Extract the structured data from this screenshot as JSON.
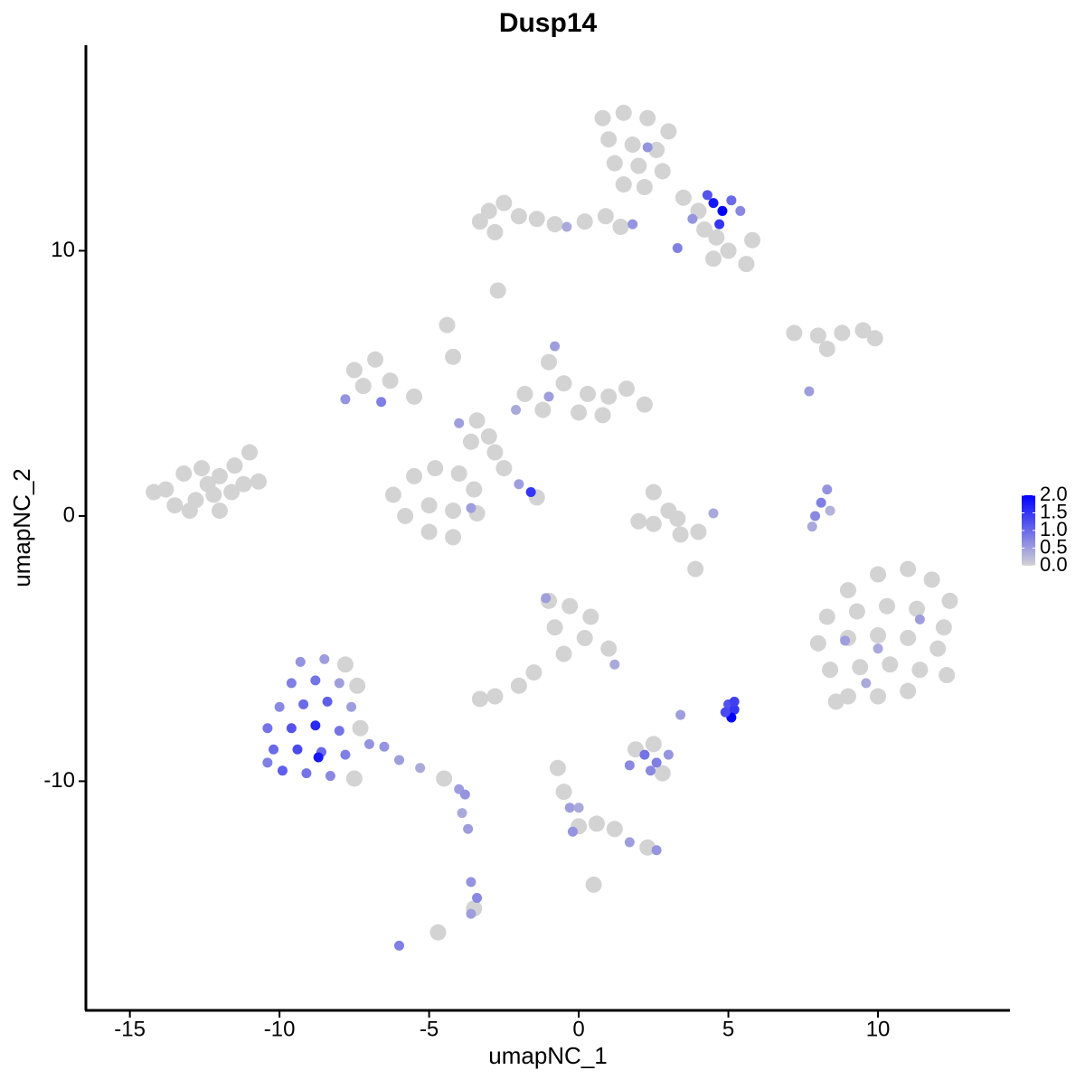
{
  "chart_data": {
    "type": "scatter",
    "title": "Dusp14",
    "x_label": "umapNC_1",
    "y_label": "umapNC_2",
    "xlim": [
      -16.47,
      14.41
    ],
    "ylim": [
      -18.64,
      17.75
    ],
    "xticks": [
      -15,
      -10,
      -5,
      0,
      5,
      10
    ],
    "yticks": [
      -10,
      0,
      10
    ],
    "color_low": "#d3d3d3",
    "color_high": "#0000ff",
    "color_lim": [
      0,
      2
    ],
    "color_ticks": [
      {
        "value": 0,
        "label": "0.0"
      },
      {
        "value": 0.5,
        "label": "0.5"
      },
      {
        "value": 1,
        "label": "1.0"
      },
      {
        "value": 1.5,
        "label": "1.5"
      },
      {
        "value": 2,
        "label": "2.0"
      }
    ],
    "x": [
      -13.8,
      -13.2,
      -12.6,
      -12.0,
      -11.5,
      -11.0,
      -13.5,
      -12.8,
      -12.2,
      -11.6,
      -11.2,
      -10.7,
      -13.0,
      -12.0,
      -14.2,
      -12.4,
      0.8,
      1.5,
      2.3,
      3.0,
      1.0,
      1.8,
      2.6,
      1.2,
      2.0,
      2.8,
      1.5,
      2.2,
      2.3,
      3.5,
      4.0,
      4.5,
      4.8,
      4.3,
      5.1,
      5.4,
      4.7,
      3.8,
      4.6,
      5.0,
      5.6,
      4.5,
      3.3,
      5.8,
      4.2,
      -3.0,
      -2.5,
      -2.0,
      -1.4,
      -0.8,
      0.2,
      0.9,
      1.4,
      -3.3,
      -2.8,
      1.8,
      -0.4,
      -2.7,
      -7.5,
      -6.8,
      -7.2,
      -6.3,
      -5.5,
      -7.8,
      -6.6,
      -4.4,
      -4.2,
      -1.8,
      -1.0,
      -0.5,
      0.3,
      1.0,
      1.6,
      2.2,
      -1.2,
      0.0,
      0.8,
      -0.8,
      -1.0,
      -2.1,
      -3.4,
      -3.0,
      -2.8,
      -3.6,
      -4.0,
      -2.5,
      -2.0,
      -1.6,
      -1.4,
      -6.2,
      -5.5,
      -4.8,
      -4.0,
      -3.5,
      -5.8,
      -5.0,
      -4.2,
      -3.4,
      -5.0,
      -4.2,
      -3.6,
      2.5,
      3.0,
      2.5,
      3.4,
      4.0,
      2.0,
      3.3,
      4.5,
      7.2,
      8.0,
      8.8,
      9.5,
      9.9,
      8.3,
      7.7,
      8.3,
      8.1,
      7.9,
      7.8,
      8.4,
      9.0,
      10.0,
      11.0,
      11.8,
      12.4,
      8.3,
      9.3,
      10.3,
      11.3,
      12.2,
      8.0,
      9.0,
      10.0,
      11.0,
      12.0,
      8.4,
      9.4,
      10.4,
      11.4,
      12.3,
      9.0,
      10.0,
      11.0,
      8.6,
      8.9,
      10.0,
      11.4,
      9.6,
      -1.0,
      -0.3,
      0.4,
      -0.8,
      0.2,
      1.0,
      -0.5,
      -1.5,
      -2.0,
      -2.8,
      -3.3,
      -1.1,
      1.2,
      5.0,
      5.2,
      5.1,
      4.9,
      5.2,
      3.4,
      1.7,
      2.2,
      2.6,
      3.0,
      2.4,
      1.9,
      2.8,
      2.5,
      -9.3,
      -8.5,
      -7.8,
      -9.6,
      -8.8,
      -8.0,
      -7.4,
      -10.0,
      -9.2,
      -8.4,
      -7.6,
      -10.4,
      -9.6,
      -8.8,
      -8.0,
      -7.3,
      -10.2,
      -9.4,
      -8.6,
      -7.8,
      -7.0,
      -9.9,
      -9.1,
      -8.3,
      -7.5,
      -10.4,
      -8.7,
      -6.5,
      -6.0,
      -5.3,
      -4.5,
      -4.0,
      -3.8,
      -3.9,
      -3.7,
      -3.6,
      -3.4,
      -3.6,
      -3.5,
      -6.0,
      -4.7,
      -0.7,
      -0.5,
      -0.3,
      0.0,
      -0.2,
      0.6,
      1.2,
      1.7,
      2.3,
      2.6,
      0.0,
      0.5,
      3.9
    ],
    "values": [
      1.0,
      1.6,
      1.8,
      1.5,
      1.9,
      2.4,
      0.4,
      0.6,
      0.8,
      0.9,
      1.2,
      1.3,
      0.2,
      0.2,
      0.9,
      1.2,
      15.0,
      15.2,
      15.0,
      14.5,
      14.2,
      14.0,
      13.8,
      13.3,
      13.2,
      13.0,
      12.5,
      12.4,
      13.9,
      12.0,
      11.5,
      11.8,
      11.5,
      12.1,
      11.9,
      11.5,
      11.0,
      11.2,
      10.5,
      10.0,
      9.5,
      9.7,
      10.1,
      10.4,
      10.8,
      11.5,
      11.8,
      11.3,
      11.2,
      11.0,
      11.1,
      11.3,
      10.9,
      11.1,
      10.7,
      11.0,
      10.9,
      8.5,
      5.5,
      5.9,
      4.9,
      5.1,
      4.5,
      4.4,
      4.3,
      7.2,
      6.0,
      4.6,
      5.8,
      5.0,
      4.6,
      4.5,
      4.8,
      4.2,
      4.0,
      3.9,
      3.8,
      6.4,
      4.5,
      4.0,
      3.6,
      3.0,
      2.4,
      2.8,
      3.5,
      1.8,
      1.2,
      0.9,
      0.7,
      0.8,
      1.5,
      1.8,
      1.6,
      1.0,
      0.0,
      0.4,
      0.2,
      0.1,
      -0.6,
      -0.8,
      0.3,
      0.9,
      0.2,
      -0.3,
      -0.7,
      -0.6,
      -0.2,
      -0.1,
      0.1,
      6.9,
      6.8,
      6.9,
      7.0,
      6.7,
      6.3,
      4.7,
      1.0,
      0.5,
      0.0,
      -0.4,
      0.2,
      -2.8,
      -2.2,
      -2.0,
      -2.4,
      -3.2,
      -3.8,
      -3.6,
      -3.4,
      -3.5,
      -4.2,
      -4.8,
      -4.6,
      -4.5,
      -4.6,
      -5.0,
      -5.8,
      -5.7,
      -5.6,
      -5.8,
      -6.0,
      -6.8,
      -6.8,
      -6.6,
      -7.0,
      -4.7,
      -5.0,
      -3.9,
      -6.3,
      -3.2,
      -3.4,
      -3.8,
      -4.2,
      -4.6,
      -5.0,
      -5.2,
      -5.9,
      -6.4,
      -6.8,
      -6.9,
      -3.1,
      -5.6,
      -7.1,
      -7.3,
      -7.6,
      -7.4,
      -7.0,
      -7.5,
      -9.4,
      -9.0,
      -9.3,
      -9.0,
      -9.6,
      -8.8,
      -9.7,
      -8.6,
      -5.5,
      -5.4,
      -5.6,
      -6.3,
      -6.2,
      -6.3,
      -6.4,
      -7.2,
      -7.1,
      -7.0,
      -7.2,
      -8.0,
      -8.0,
      -7.9,
      -8.1,
      -8.0,
      -8.8,
      -8.8,
      -8.9,
      -9.0,
      -8.6,
      -9.6,
      -9.7,
      -9.8,
      -9.9,
      -9.3,
      -9.1,
      -8.7,
      -9.2,
      -9.5,
      -9.9,
      -10.3,
      -10.5,
      -11.2,
      -11.8,
      -13.8,
      -14.4,
      -15.0,
      -14.8,
      -16.2,
      -15.7,
      -9.5,
      -10.4,
      -11.0,
      -11.7,
      -11.9,
      -11.6,
      -11.8,
      -12.3,
      -12.5,
      -12.6,
      -11.0,
      -13.9,
      -2.0
    ],
    "expression": [
      0,
      0,
      0,
      0,
      0,
      0,
      0,
      0,
      0,
      0,
      0,
      0,
      0,
      0,
      0,
      0,
      0,
      0,
      0,
      0,
      0,
      0,
      0,
      0,
      0,
      0,
      0,
      0,
      0.6,
      0,
      0,
      1.8,
      2.0,
      1.2,
      1.0,
      0.7,
      1.5,
      0.6,
      0,
      0,
      0,
      0,
      0.8,
      0,
      0,
      0,
      0,
      0,
      0,
      0,
      0,
      0,
      0,
      0,
      0,
      0.6,
      0.4,
      0,
      0,
      0,
      0,
      0,
      0,
      0.6,
      0.8,
      0,
      0,
      0,
      0,
      0,
      0,
      0,
      0,
      0,
      0,
      0,
      0,
      0.5,
      0.5,
      0.4,
      0,
      0,
      0,
      0,
      0.5,
      0,
      0.5,
      1.5,
      0,
      0,
      0,
      0,
      0,
      0,
      0,
      0,
      0,
      0,
      0,
      0,
      0.5,
      0,
      0,
      0,
      0,
      0,
      0,
      0,
      0.4,
      0,
      0,
      0,
      0,
      0,
      0,
      0.5,
      0.6,
      0.8,
      0.7,
      0.4,
      0.3,
      0,
      0,
      0,
      0,
      0,
      0,
      0,
      0,
      0,
      0,
      0,
      0,
      0,
      0,
      0,
      0,
      0,
      0,
      0,
      0,
      0,
      0,
      0,
      0,
      0.5,
      0.4,
      0.5,
      0.4,
      0,
      0,
      0,
      0,
      0,
      0,
      0,
      0,
      0,
      0,
      0,
      0.5,
      0.4,
      1.2,
      1.5,
      2.0,
      1.3,
      1.4,
      0.5,
      0.7,
      0.9,
      0.8,
      0.6,
      0.7,
      0,
      0,
      0,
      0.6,
      0.5,
      0,
      0.8,
      0.9,
      0.5,
      0,
      0.7,
      1.0,
      1.1,
      0.5,
      0.9,
      1.2,
      1.6,
      0.9,
      0,
      1.0,
      1.3,
      1.0,
      0.8,
      0.6,
      1.1,
      0.9,
      0.7,
      0,
      0.8,
      1.8,
      0.6,
      0.5,
      0.4,
      0,
      0.5,
      0.6,
      0.4,
      0.5,
      0.6,
      0.7,
      0.5,
      0,
      0.8,
      0,
      0,
      0,
      0.5,
      0,
      0.6,
      0,
      0,
      0.5,
      0,
      0.6,
      0.4,
      0,
      0
    ]
  }
}
